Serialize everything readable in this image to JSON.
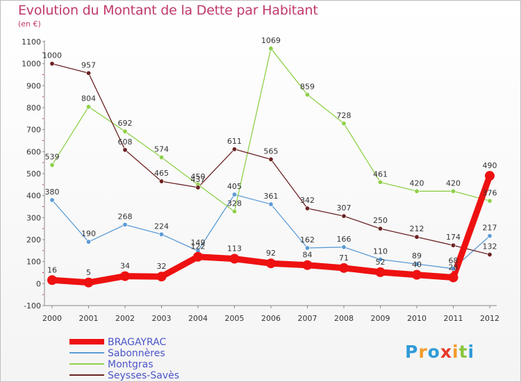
{
  "title": "Evolution du Montant de la Dette par Habitant",
  "unit": "(en €)",
  "logo": {
    "letters": [
      "P",
      "r",
      "o",
      "x",
      "i",
      "t",
      "i"
    ],
    "colors": [
      "#2f9bd6",
      "#f39b2a",
      "#2f9bd6",
      "#e8392b",
      "#f39b2a",
      "#8bc53f",
      "#2f9bd6"
    ]
  },
  "chart_data": {
    "type": "line",
    "title": "Evolution du Montant de la Dette par Habitant",
    "ylabel": "(en €)",
    "x": [
      "2000",
      "2001",
      "2002",
      "2003",
      "2004",
      "2005",
      "2006",
      "2007",
      "2008",
      "2009",
      "2010",
      "2011",
      "2012"
    ],
    "yticks": [
      "-100",
      "0",
      "100",
      "200",
      "300",
      "400",
      "500",
      "600",
      "700",
      "800",
      "900",
      "1000",
      "1100"
    ],
    "ylim": [
      -100,
      1100
    ],
    "grid": false,
    "legend_position": "bottom-left",
    "series": [
      {
        "name": "BRAGAYRAC",
        "color": "#ee1111",
        "thick": true,
        "values": [
          16,
          5,
          34,
          32,
          122,
          113,
          92,
          84,
          71,
          52,
          40,
          28,
          490
        ],
        "labels": [
          "16",
          "5",
          "34",
          "32",
          "122",
          "113",
          "92",
          "84",
          "71",
          "52",
          "40",
          "28",
          "490"
        ]
      },
      {
        "name": "Sabonnères",
        "color": "#5b9bd5",
        "thick": false,
        "values": [
          380,
          190,
          268,
          224,
          149,
          405,
          361,
          162,
          166,
          110,
          89,
          68,
          217
        ],
        "labels": [
          "380",
          "190",
          "268",
          "224",
          "149",
          "405",
          "361",
          "162",
          "166",
          "110",
          "89",
          "68",
          "217"
        ]
      },
      {
        "name": "Montgras",
        "color": "#8ed04a",
        "thick": false,
        "values": [
          539,
          804,
          692,
          574,
          450,
          328,
          1069,
          859,
          728,
          461,
          420,
          420,
          376
        ],
        "labels": [
          "539",
          "804",
          "692",
          "574",
          "450",
          "328",
          "1069",
          "859",
          "728",
          "461",
          "420",
          "420",
          "376"
        ]
      },
      {
        "name": "Seysses-Savès",
        "color": "#6b2323",
        "thick": false,
        "values": [
          1000,
          957,
          608,
          465,
          437,
          611,
          565,
          342,
          307,
          250,
          212,
          174,
          132
        ],
        "labels": [
          "1000",
          "957",
          "608",
          "465",
          "437",
          "611",
          "565",
          "342",
          "307",
          "250",
          "212",
          "174",
          "132"
        ]
      }
    ]
  }
}
